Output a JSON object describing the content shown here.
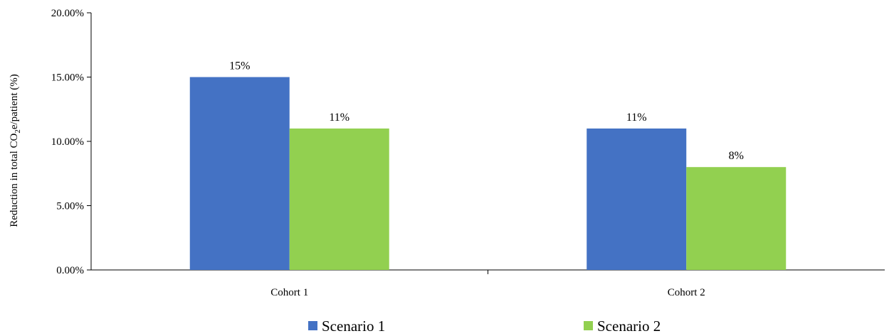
{
  "chart_data": {
    "type": "bar",
    "categories": [
      "Cohort 1",
      "Cohort 2"
    ],
    "series": [
      {
        "name": "Scenario 1",
        "values": [
          15,
          11
        ],
        "labels": [
          "15%",
          "11%"
        ],
        "color": "#4472C4"
      },
      {
        "name": "Scenario 2",
        "values": [
          11,
          8
        ],
        "labels": [
          "11%",
          "8%"
        ],
        "color": "#92D050"
      }
    ],
    "ylabel": "Reduction in total CO2e/patient (%)",
    "ylabel_parts": {
      "before": "Reduction in total CO",
      "sub": "2",
      "after": "e/patient (%)"
    },
    "ylim": [
      0,
      20
    ],
    "yticks": [
      0,
      5,
      10,
      15,
      20
    ],
    "ytick_labels": [
      "0.00%",
      "5.00%",
      "10.00%",
      "15.00%",
      "20.00%"
    ],
    "grid": false,
    "legend_position": "bottom"
  }
}
